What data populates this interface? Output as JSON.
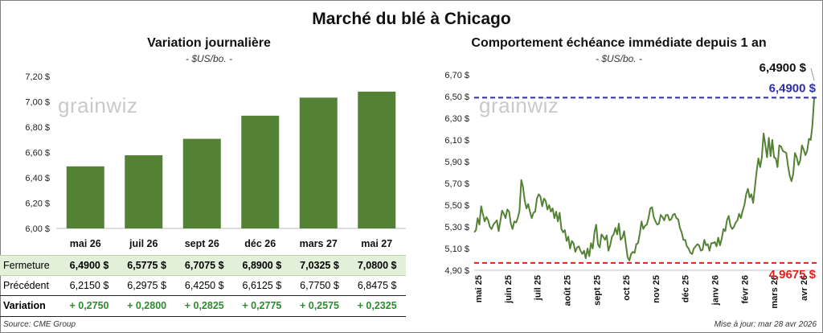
{
  "title": "Marché du blé à Chicago",
  "left_panel": {
    "title": "Variation journalière",
    "unit": "- $US/bo. -",
    "watermark": "grainwiz",
    "chart_data": {
      "type": "bar",
      "categories": [
        "mai 26",
        "juil 26",
        "sept 26",
        "déc 26",
        "mars 27",
        "mai 27"
      ],
      "values": [
        6.49,
        6.5775,
        6.7075,
        6.89,
        7.0325,
        7.08
      ],
      "ylim": [
        6.0,
        7.2
      ],
      "yticks": [
        "6,00 $",
        "6,20 $",
        "6,40 $",
        "6,60 $",
        "6,80 $",
        "7,00 $",
        "7,20 $"
      ],
      "color": "#548235"
    },
    "table": {
      "rows": [
        {
          "label": "Fermeture",
          "values": [
            "6,4900  $",
            "6,5775  $",
            "6,7075  $",
            "6,8900  $",
            "7,0325  $",
            "7,0800  $"
          ]
        },
        {
          "label": "Précédent",
          "values": [
            "6,2150  $",
            "6,2975  $",
            "6,4250  $",
            "6,6125  $",
            "6,7750  $",
            "6,8475  $"
          ]
        },
        {
          "label": "Variation",
          "values": [
            "+ 0,2750",
            "+ 0,2800",
            "+ 0,2825",
            "+ 0,2775",
            "+ 0,2575",
            "+ 0,2325"
          ]
        }
      ]
    },
    "source": "Source: CME Group"
  },
  "right_panel": {
    "title": "Comportement  échéance immédiate depuis 1 an",
    "unit": "- $US/bo. -",
    "watermark": "grainwiz",
    "chart_data": {
      "type": "line",
      "ylim": [
        4.9,
        6.7
      ],
      "yticks": [
        "4,90 $",
        "5,10 $",
        "5,30 $",
        "5,50 $",
        "5,70 $",
        "5,90 $",
        "6,10 $",
        "6,30 $",
        "6,50 $",
        "6,70 $"
      ],
      "xticks": [
        "mai 25",
        "juin 25",
        "juil 25",
        "août 25",
        "sept 25",
        "oct 25",
        "nov 25",
        "déc 25",
        "janv 26",
        "févr 26",
        "mars 26",
        "avr 26"
      ],
      "series": [
        {
          "name": "Échéance immédiate",
          "color": "#548235",
          "values": [
            5.25,
            5.27,
            5.38,
            5.32,
            5.49,
            5.42,
            5.35,
            5.39,
            5.36,
            5.3,
            5.28,
            5.32,
            5.34,
            5.36,
            5.26,
            5.35,
            5.45,
            5.42,
            5.38,
            5.46,
            5.44,
            5.33,
            5.28,
            5.35,
            5.34,
            5.38,
            5.45,
            5.73,
            5.67,
            5.54,
            5.47,
            5.51,
            5.44,
            5.38,
            5.43,
            5.44,
            5.56,
            5.6,
            5.58,
            5.49,
            5.56,
            5.54,
            5.46,
            5.5,
            5.44,
            5.47,
            5.38,
            5.44,
            5.35,
            5.43,
            5.28,
            5.25,
            5.27,
            5.17,
            5.21,
            5.1,
            5.17,
            5.15,
            5.07,
            5.11,
            5.12,
            5.08,
            5.05,
            5.08,
            5.01,
            5.1,
            5.03,
            5.15,
            5.1,
            5.25,
            5.32,
            5.14,
            5.11,
            5.23,
            5.21,
            5.18,
            5.22,
            5.08,
            5.13,
            5.21,
            5.23,
            5.29,
            5.23,
            5.33,
            5.18,
            5.2,
            5.26,
            5.14,
            5.02,
            4.99,
            5.05,
            5.07,
            5.06,
            5.14,
            5.15,
            5.24,
            5.35,
            5.28,
            5.31,
            5.32,
            5.38,
            5.47,
            5.48,
            5.39,
            5.35,
            5.32,
            5.33,
            5.41,
            5.39,
            5.36,
            5.41,
            5.41,
            5.36,
            5.37,
            5.41,
            5.42,
            5.38,
            5.37,
            5.29,
            5.25,
            5.18,
            5.18,
            5.12,
            5.1,
            5.06,
            5.05,
            5.1,
            5.12,
            5.14,
            5.13,
            5.08,
            5.09,
            5.18,
            5.13,
            5.14,
            5.08,
            5.15,
            5.15,
            5.16,
            5.12,
            5.2,
            5.13,
            5.19,
            5.28,
            5.26,
            5.36,
            5.4,
            5.31,
            5.28,
            5.3,
            5.34,
            5.36,
            5.42,
            5.38,
            5.45,
            5.5,
            5.6,
            5.65,
            5.57,
            5.6,
            5.52,
            5.66,
            5.81,
            5.93,
            5.85,
            5.94,
            6.16,
            6.05,
            5.94,
            6.12,
            5.95,
            6.1,
            5.94,
            5.93,
            5.85,
            6.05,
            6.04,
            6.0,
            5.99,
            5.98,
            5.86,
            5.77,
            5.72,
            5.79,
            5.98,
            5.94,
            5.87,
            5.91,
            6.05,
            6.01,
            5.96,
            6.0,
            6.11,
            6.1,
            6.23,
            6.49
          ]
        }
      ],
      "references": [
        {
          "value": 6.49,
          "label": "6,4900 $",
          "color": "#2e2ea8"
        },
        {
          "value": 4.9675,
          "label": "4,9675 $",
          "color": "#e11f1f"
        }
      ],
      "last_label": "6,4900 $"
    },
    "updated": "Mise à jour: mar 28 avr 2026"
  }
}
